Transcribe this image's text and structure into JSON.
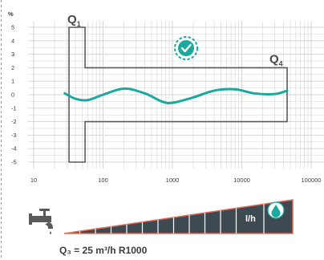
{
  "chart_data": {
    "type": "line",
    "y_unit": "%",
    "x_scale": "log",
    "xlim": [
      10,
      100000
    ],
    "ylim": [
      -5,
      5
    ],
    "x_ticks": [
      "10",
      "100",
      "1000",
      "10000",
      "100000"
    ],
    "y_ticks": [
      "5",
      "4",
      "3",
      "2",
      "1",
      "0",
      "-1",
      "-2",
      "-3",
      "-4",
      "-5"
    ],
    "grid": true,
    "q1_label": "Q",
    "q1_sub": "1",
    "q4_label": "Q",
    "q4_sub": "4",
    "q1_flow": 55,
    "q4_flow": 45000,
    "q1_tolerance": [
      -5,
      5
    ],
    "q_tolerance": [
      -2,
      2
    ],
    "series": [
      {
        "color": "#1aa99c",
        "x": [
          28,
          40,
          60,
          100,
          200,
          400,
          700,
          1000,
          2000,
          4000,
          8000,
          15000,
          30000,
          45000
        ],
        "y": [
          0.1,
          -0.3,
          -0.4,
          0.0,
          0.45,
          0.1,
          -0.5,
          -0.6,
          -0.2,
          0.3,
          0.4,
          0.1,
          0.05,
          0.3
        ]
      }
    ],
    "caption": "Q₃ = 25 m³/h  R1000",
    "flow_unit": "l/h"
  },
  "colors": {
    "frame": "#5a5a5a",
    "grid": "#d4d4d4",
    "curve": "#1aa99c",
    "bar_fill": "#3d4a52",
    "bar_outline": "#e46a5a",
    "badge": "#1aa99c"
  },
  "icons": {
    "badge": "checkmark-badge-icon",
    "faucet": "water-tap-icon",
    "drop": "water-drop-icon"
  }
}
